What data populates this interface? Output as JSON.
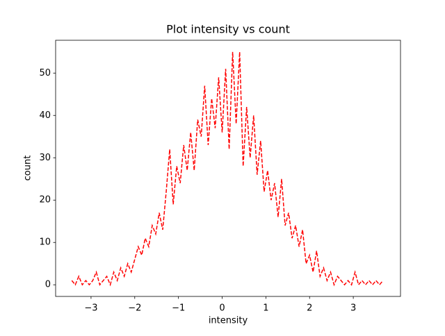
{
  "chart_data": {
    "type": "line",
    "title": "Plot intensity vs count",
    "x_label": "intensity",
    "y_label": "count",
    "x": [
      -3.44,
      -3.36,
      -3.28,
      -3.2,
      -3.12,
      -3.04,
      -2.96,
      -2.88,
      -2.8,
      -2.72,
      -2.64,
      -2.56,
      -2.48,
      -2.4,
      -2.32,
      -2.24,
      -2.16,
      -2.08,
      -2.0,
      -1.92,
      -1.84,
      -1.76,
      -1.68,
      -1.6,
      -1.52,
      -1.44,
      -1.36,
      -1.28,
      -1.2,
      -1.12,
      -1.04,
      -0.96,
      -0.88,
      -0.8,
      -0.72,
      -0.64,
      -0.56,
      -0.48,
      -0.4,
      -0.32,
      -0.24,
      -0.16,
      -0.08,
      0,
      0.08,
      0.16,
      0.24,
      0.32,
      0.4,
      0.48,
      0.56,
      0.64,
      0.72,
      0.8,
      0.88,
      0.96,
      1.04,
      1.12,
      1.2,
      1.28,
      1.36,
      1.44,
      1.52,
      1.6,
      1.68,
      1.76,
      1.84,
      1.92,
      2.0,
      2.08,
      2.16,
      2.24,
      2.32,
      2.4,
      2.48,
      2.56,
      2.64,
      2.72,
      2.8,
      2.88,
      2.96,
      3.04,
      3.12,
      3.2,
      3.28,
      3.36,
      3.44,
      3.52,
      3.6,
      3.68
    ],
    "values": [
      1,
      0,
      2,
      0,
      1,
      0,
      1,
      3,
      0,
      1,
      2,
      0,
      3,
      1,
      4,
      2,
      5,
      3,
      6,
      9,
      7,
      11,
      9,
      14,
      12,
      17,
      13,
      22,
      32,
      19,
      28,
      24,
      33,
      27,
      36,
      27,
      39,
      35,
      47,
      33,
      44,
      37,
      49,
      36,
      51,
      32,
      55,
      38,
      55,
      28,
      42,
      30,
      40,
      26,
      34,
      22,
      27,
      20,
      24,
      16,
      25,
      14,
      17,
      11,
      14,
      9,
      13,
      5,
      7,
      3,
      8,
      2,
      4,
      1,
      3,
      0,
      2,
      1,
      0,
      1,
      0,
      3,
      0,
      1,
      0,
      1,
      0,
      1,
      0,
      1
    ],
    "color": "#ff0000",
    "line_style": "dashed",
    "xlim": [
      -3.81,
      4.08
    ],
    "ylim": [
      -2.75,
      57.75
    ],
    "xticks": [
      {
        "value": -3,
        "label": "−3"
      },
      {
        "value": -2,
        "label": "−2"
      },
      {
        "value": -1,
        "label": "−1"
      },
      0,
      1,
      2,
      3
    ],
    "yticks": [
      0,
      10,
      20,
      30,
      40,
      50
    ]
  }
}
